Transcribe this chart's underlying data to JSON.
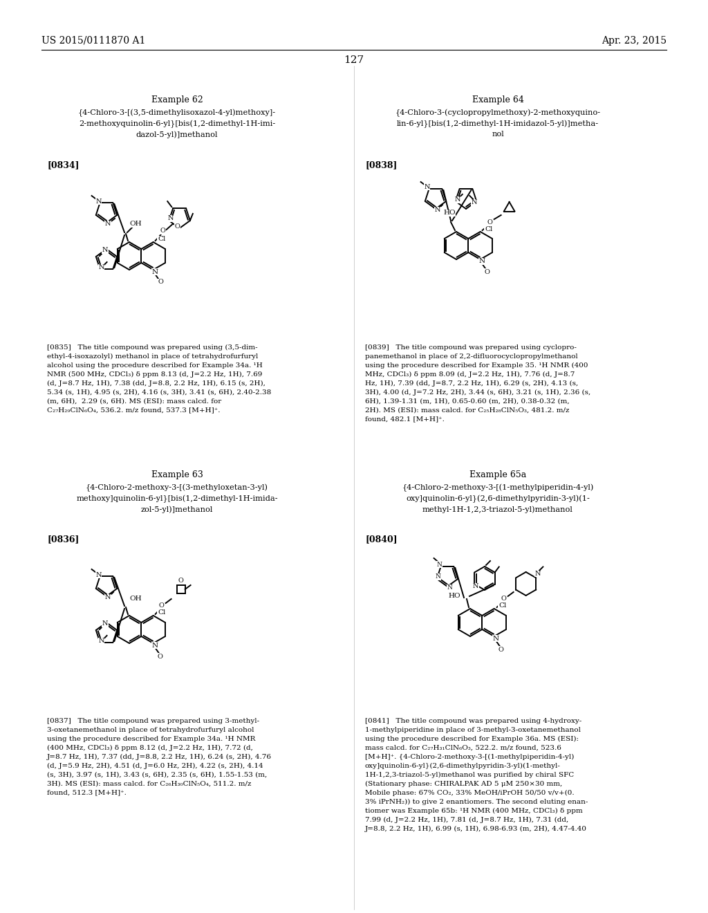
{
  "page_number": "127",
  "header_left": "US 2015/0111870 A1",
  "header_right": "Apr. 23, 2015",
  "background_color": "#ffffff",
  "text_color": "#000000",
  "ex62_title": "Example 62",
  "ex62_name": "{4-Chloro-3-[(3,5-dimethylisoxazol-4-yl)methoxy]-\n2-methoxyquinolin-6-yl}[bis(1,2-dimethyl-1H-imi-\ndazol-5-yl)]methanol",
  "ex62_ref": "[0834]",
  "ex64_title": "Example 64",
  "ex64_name": "{4-Chloro-3-(cyclopropylmethoxy)-2-methoxyquino-\nlin-6-yl}[bis(1,2-dimethyl-1H-imidazol-5-yl)]metha-\nnol",
  "ex64_ref": "[0838]",
  "ex63_title": "Example 63",
  "ex63_name": "{4-Chloro-2-methoxy-3-[(3-methyloxetan-3-yl)\nmethoxy]quinolin-6-yl}[bis(1,2-dimethyl-1H-imida-\nzol-5-yl)]methanol",
  "ex63_ref": "[0836]",
  "ex65a_title": "Example 65a",
  "ex65a_name": "{4-Chloro-2-methoxy-3-[(1-methylpiperidin-4-yl)\noxy]quinolin-6-yl}(2,6-dimethylpyridin-3-yl)(1-\nmethyl-1H-1,2,3-triazol-5-yl)methanol",
  "ex65a_ref": "[0840]",
  "para0835": "[0835]   The title compound was prepared using (3,5-dim-\nethyl-4-isoxazolyl) methanol in place of tetrahydrofurfuryl\nalcohol using the procedure described for Example 34a. ¹H\nNMR (500 MHz, CDCl₃) δ ppm 8.13 (d, J=2.2 Hz, 1H), 7.69\n(d, J=8.7 Hz, 1H), 7.38 (dd, J=8.8, 2.2 Hz, 1H), 6.15 (s, 2H),\n5.34 (s, 1H), 4.95 (s, 2H), 4.16 (s, 3H), 3.41 (s, 6H), 2.40-2.38\n(m, 6H),  2.29 (s, 6H). MS (ESI): mass calcd. for\nC₂₇H₂₉ClN₆O₄, 536.2. m/z found, 537.3 [M+H]⁺.",
  "para0839": "[0839]   The title compound was prepared using cyclopro-\npanemethanol in place of 2,2-difluorocyclopropylmethanol\nusing the procedure described for Example 35. ¹H NMR (400\nMHz, CDCl₃) δ ppm 8.09 (d, J=2.2 Hz, 1H), 7.76 (d, J=8.7\nHz, 1H), 7.39 (dd, J=8.7, 2.2 Hz, 1H), 6.29 (s, 2H), 4.13 (s,\n3H), 4.00 (d, J=7.2 Hz, 2H), 3.44 (s, 6H), 3.21 (s, 1H), 2.36 (s,\n6H), 1.39-1.31 (m, 1H), 0.65-0.60 (m, 2H), 0.38-0.32 (m,\n2H). MS (ESI): mass calcd. for C₂₅H₂₈ClN₅O₃, 481.2. m/z\nfound, 482.1 [M+H]⁺.",
  "para0837": "[0837]   The title compound was prepared using 3-methyl-\n3-oxetanemethanol in place of tetrahydrofurfuryl alcohol\nusing the procedure described for Example 34a. ¹H NMR\n(400 MHz, CDCl₃) δ ppm 8.12 (d, J=2.2 Hz, 1H), 7.72 (d,\nJ=8.7 Hz, 1H), 7.37 (dd, J=8.8, 2.2 Hz, 1H), 6.24 (s, 2H), 4.76\n(d, J=5.9 Hz, 2H), 4.51 (d, J=6.0 Hz, 2H), 4.22 (s, 2H), 4.14\n(s, 3H), 3.97 (s, 1H), 3.43 (s, 6H), 2.35 (s, 6H), 1.55-1.53 (m,\n3H). MS (ESI): mass calcd. for C₂₆H₃₀ClN₅O₄, 511.2. m/z\nfound, 512.3 [M+H]⁺.",
  "para0841": "[0841]   The title compound was prepared using 4-hydroxy-\n1-methylpiperidine in place of 3-methyl-3-oxetanemethanol\nusing the procedure described for Example 36a. MS (ESI):\nmass calcd. for C₂₇H₃₁ClN₆O₃, 522.2. m/z found, 523.6\n[M+H]⁺. {4-Chloro-2-methoxy-3-[(1-methylpiperidin-4-yl)\noxy]quinolin-6-yl}(2,6-dimethylpyridin-3-yl)(1-methyl-\n1H-1,2,3-triazol-5-yl)methanol was purified by chiral SFC\n(Stationary phase: CHIRALPAK AD 5 μM 250×30 mm,\nMobile phase: 67% CO₂, 33% MeOH/iPrOH 50/50 v/v+(0.\n3% iPrNH₂)) to give 2 enantiomers. The second eluting enan-\ntiomer was Example 65b: ¹H NMR (400 MHz, CDCl₃) δ ppm\n7.99 (d, J=2.2 Hz, 1H), 7.81 (d, J=8.7 Hz, 1H), 7.31 (dd,\nJ=8.8, 2.2 Hz, 1H), 6.99 (s, 1H), 6.98-6.93 (m, 2H), 4.47-4.40"
}
